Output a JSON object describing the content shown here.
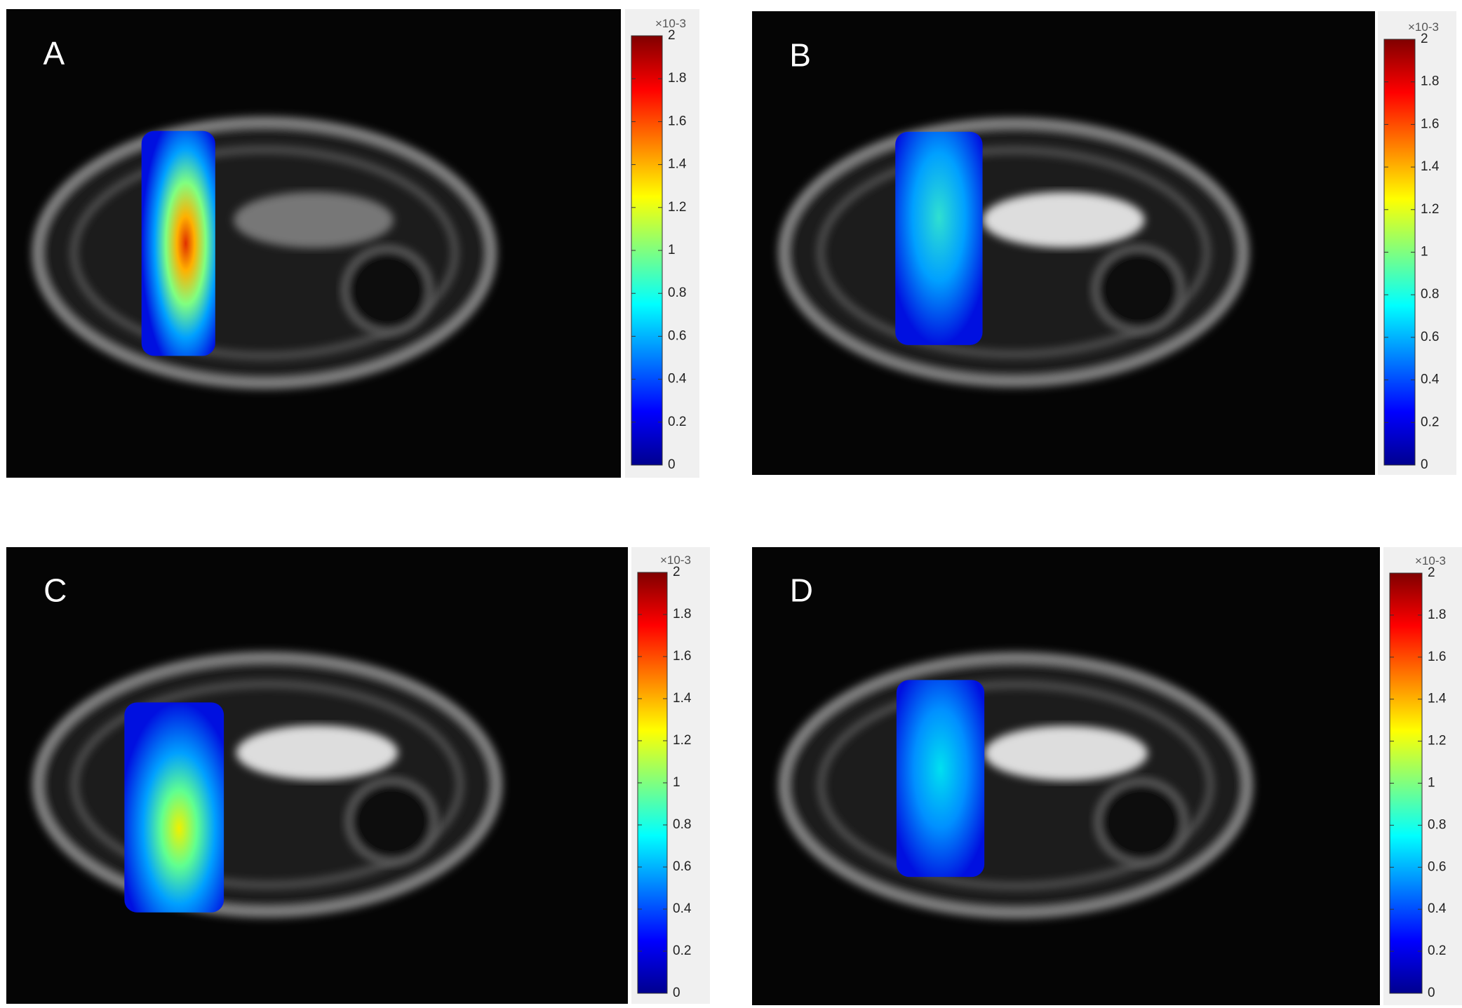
{
  "panels": [
    {
      "label": "A",
      "colorbar": {
        "multiplier": "×10-3",
        "lim": [
          0,
          2
        ],
        "ticks": [
          0,
          0.2,
          0.4,
          0.6,
          0.8,
          1,
          1.2,
          1.4,
          1.6,
          1.8,
          2
        ]
      }
    },
    {
      "label": "B",
      "colorbar": {
        "multiplier": "×10-3",
        "lim": [
          0,
          2
        ],
        "ticks": [
          0,
          0.2,
          0.4,
          0.6,
          0.8,
          1,
          1.2,
          1.4,
          1.6,
          1.8,
          2
        ]
      }
    },
    {
      "label": "C",
      "colorbar": {
        "multiplier": "×10-3",
        "lim": [
          0,
          2
        ],
        "ticks": [
          0,
          0.2,
          0.4,
          0.6,
          0.8,
          1,
          1.2,
          1.4,
          1.6,
          1.8,
          2
        ]
      }
    },
    {
      "label": "D",
      "colorbar": {
        "multiplier": "×10-3",
        "lim": [
          0,
          2
        ],
        "ticks": [
          0,
          0.2,
          0.4,
          0.6,
          0.8,
          1,
          1.2,
          1.4,
          1.6,
          1.8,
          2
        ]
      }
    }
  ]
}
